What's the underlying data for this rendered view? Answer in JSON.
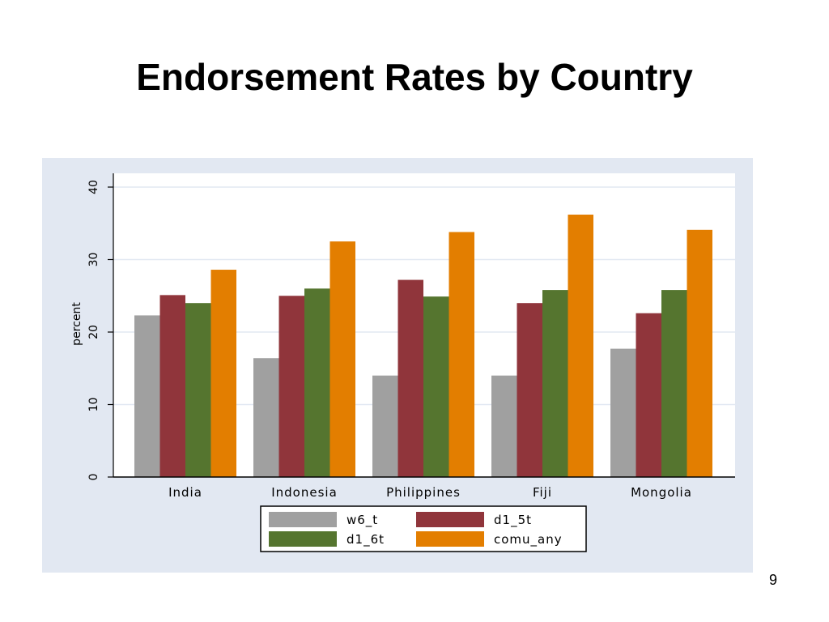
{
  "slide": {
    "title": "Endorsement Rates by Country",
    "page_number": "9"
  },
  "chart_data": {
    "type": "bar",
    "title": "",
    "xlabel": "",
    "ylabel": "percent",
    "ylim": [
      0,
      40
    ],
    "yticks": [
      0,
      10,
      20,
      30,
      40
    ],
    "grid": true,
    "legend_position": "bottom",
    "categories": [
      "India",
      "Indonesia",
      "Philippines",
      "Fiji",
      "Mongolia"
    ],
    "series": [
      {
        "name": "w6_t",
        "color": "#a0a0a0",
        "values": [
          22.3,
          16.4,
          14.0,
          14.0,
          17.7
        ]
      },
      {
        "name": "d1_5t",
        "color": "#90353b",
        "values": [
          25.1,
          25.0,
          27.2,
          24.0,
          22.6
        ]
      },
      {
        "name": "d1_6t",
        "color": "#55752f",
        "values": [
          24.0,
          26.0,
          24.9,
          25.8,
          25.8
        ]
      },
      {
        "name": "comu_any",
        "color": "#e37e00",
        "values": [
          28.6,
          32.5,
          33.8,
          36.2,
          34.1
        ]
      }
    ]
  }
}
